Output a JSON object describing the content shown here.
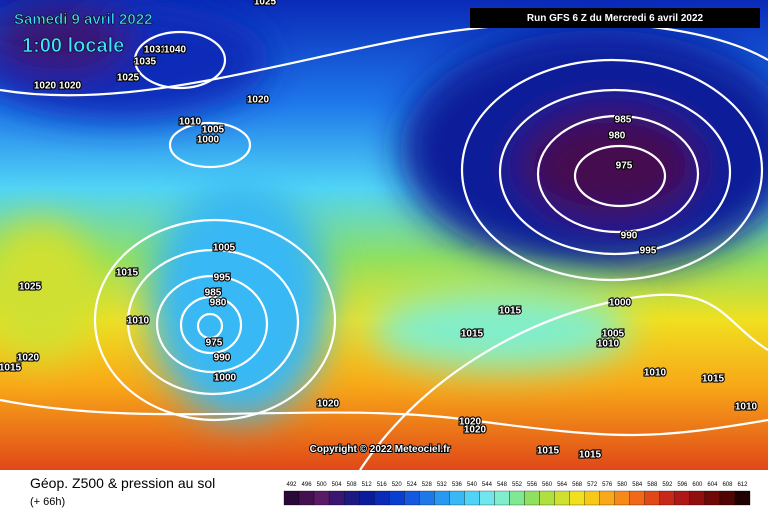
{
  "header": {
    "date": "Samedi 9 avril 2022",
    "time": "1:00 locale",
    "run": "Run GFS 6 Z du Mercredi 6 avril 2022"
  },
  "copyright": "Copyright © 2022 Meteociel.fr",
  "footer": {
    "title": "Géop. Z500 & pression au sol",
    "lead": "(+ 66h)"
  },
  "isobar_labels": [
    1025,
    1031,
    1040,
    1035,
    1025,
    1020,
    1020,
    1020,
    1010,
    1005,
    1000,
    985,
    980,
    975,
    990,
    995,
    1005,
    995,
    985,
    980,
    975,
    990,
    1000,
    1015,
    1025,
    1010,
    1020,
    1015,
    1020,
    1020,
    1020,
    1015,
    1015,
    1000,
    1005,
    1010,
    1010,
    1015,
    1010,
    1015,
    1015
  ],
  "scale": {
    "values": [
      492,
      496,
      500,
      504,
      508,
      512,
      516,
      520,
      524,
      528,
      532,
      536,
      540,
      544,
      548,
      552,
      556,
      560,
      564,
      568,
      572,
      576,
      580,
      584,
      588,
      592,
      596,
      600,
      604,
      608,
      612
    ],
    "colors": [
      "#2a0838",
      "#45104f",
      "#5a1a66",
      "#3b1670",
      "#1c1a80",
      "#0a1c99",
      "#0a2ab8",
      "#0a3ed0",
      "#1458e0",
      "#1e78ea",
      "#2898f0",
      "#38b8f4",
      "#50d4f6",
      "#70e6ee",
      "#80eecc",
      "#80e890",
      "#90e060",
      "#b0e040",
      "#d0e030",
      "#f0e020",
      "#f8c818",
      "#f8a818",
      "#f88818",
      "#f06818",
      "#e04818",
      "#c82818",
      "#b01818",
      "#901010",
      "#700808",
      "#500404",
      "#200000"
    ]
  }
}
